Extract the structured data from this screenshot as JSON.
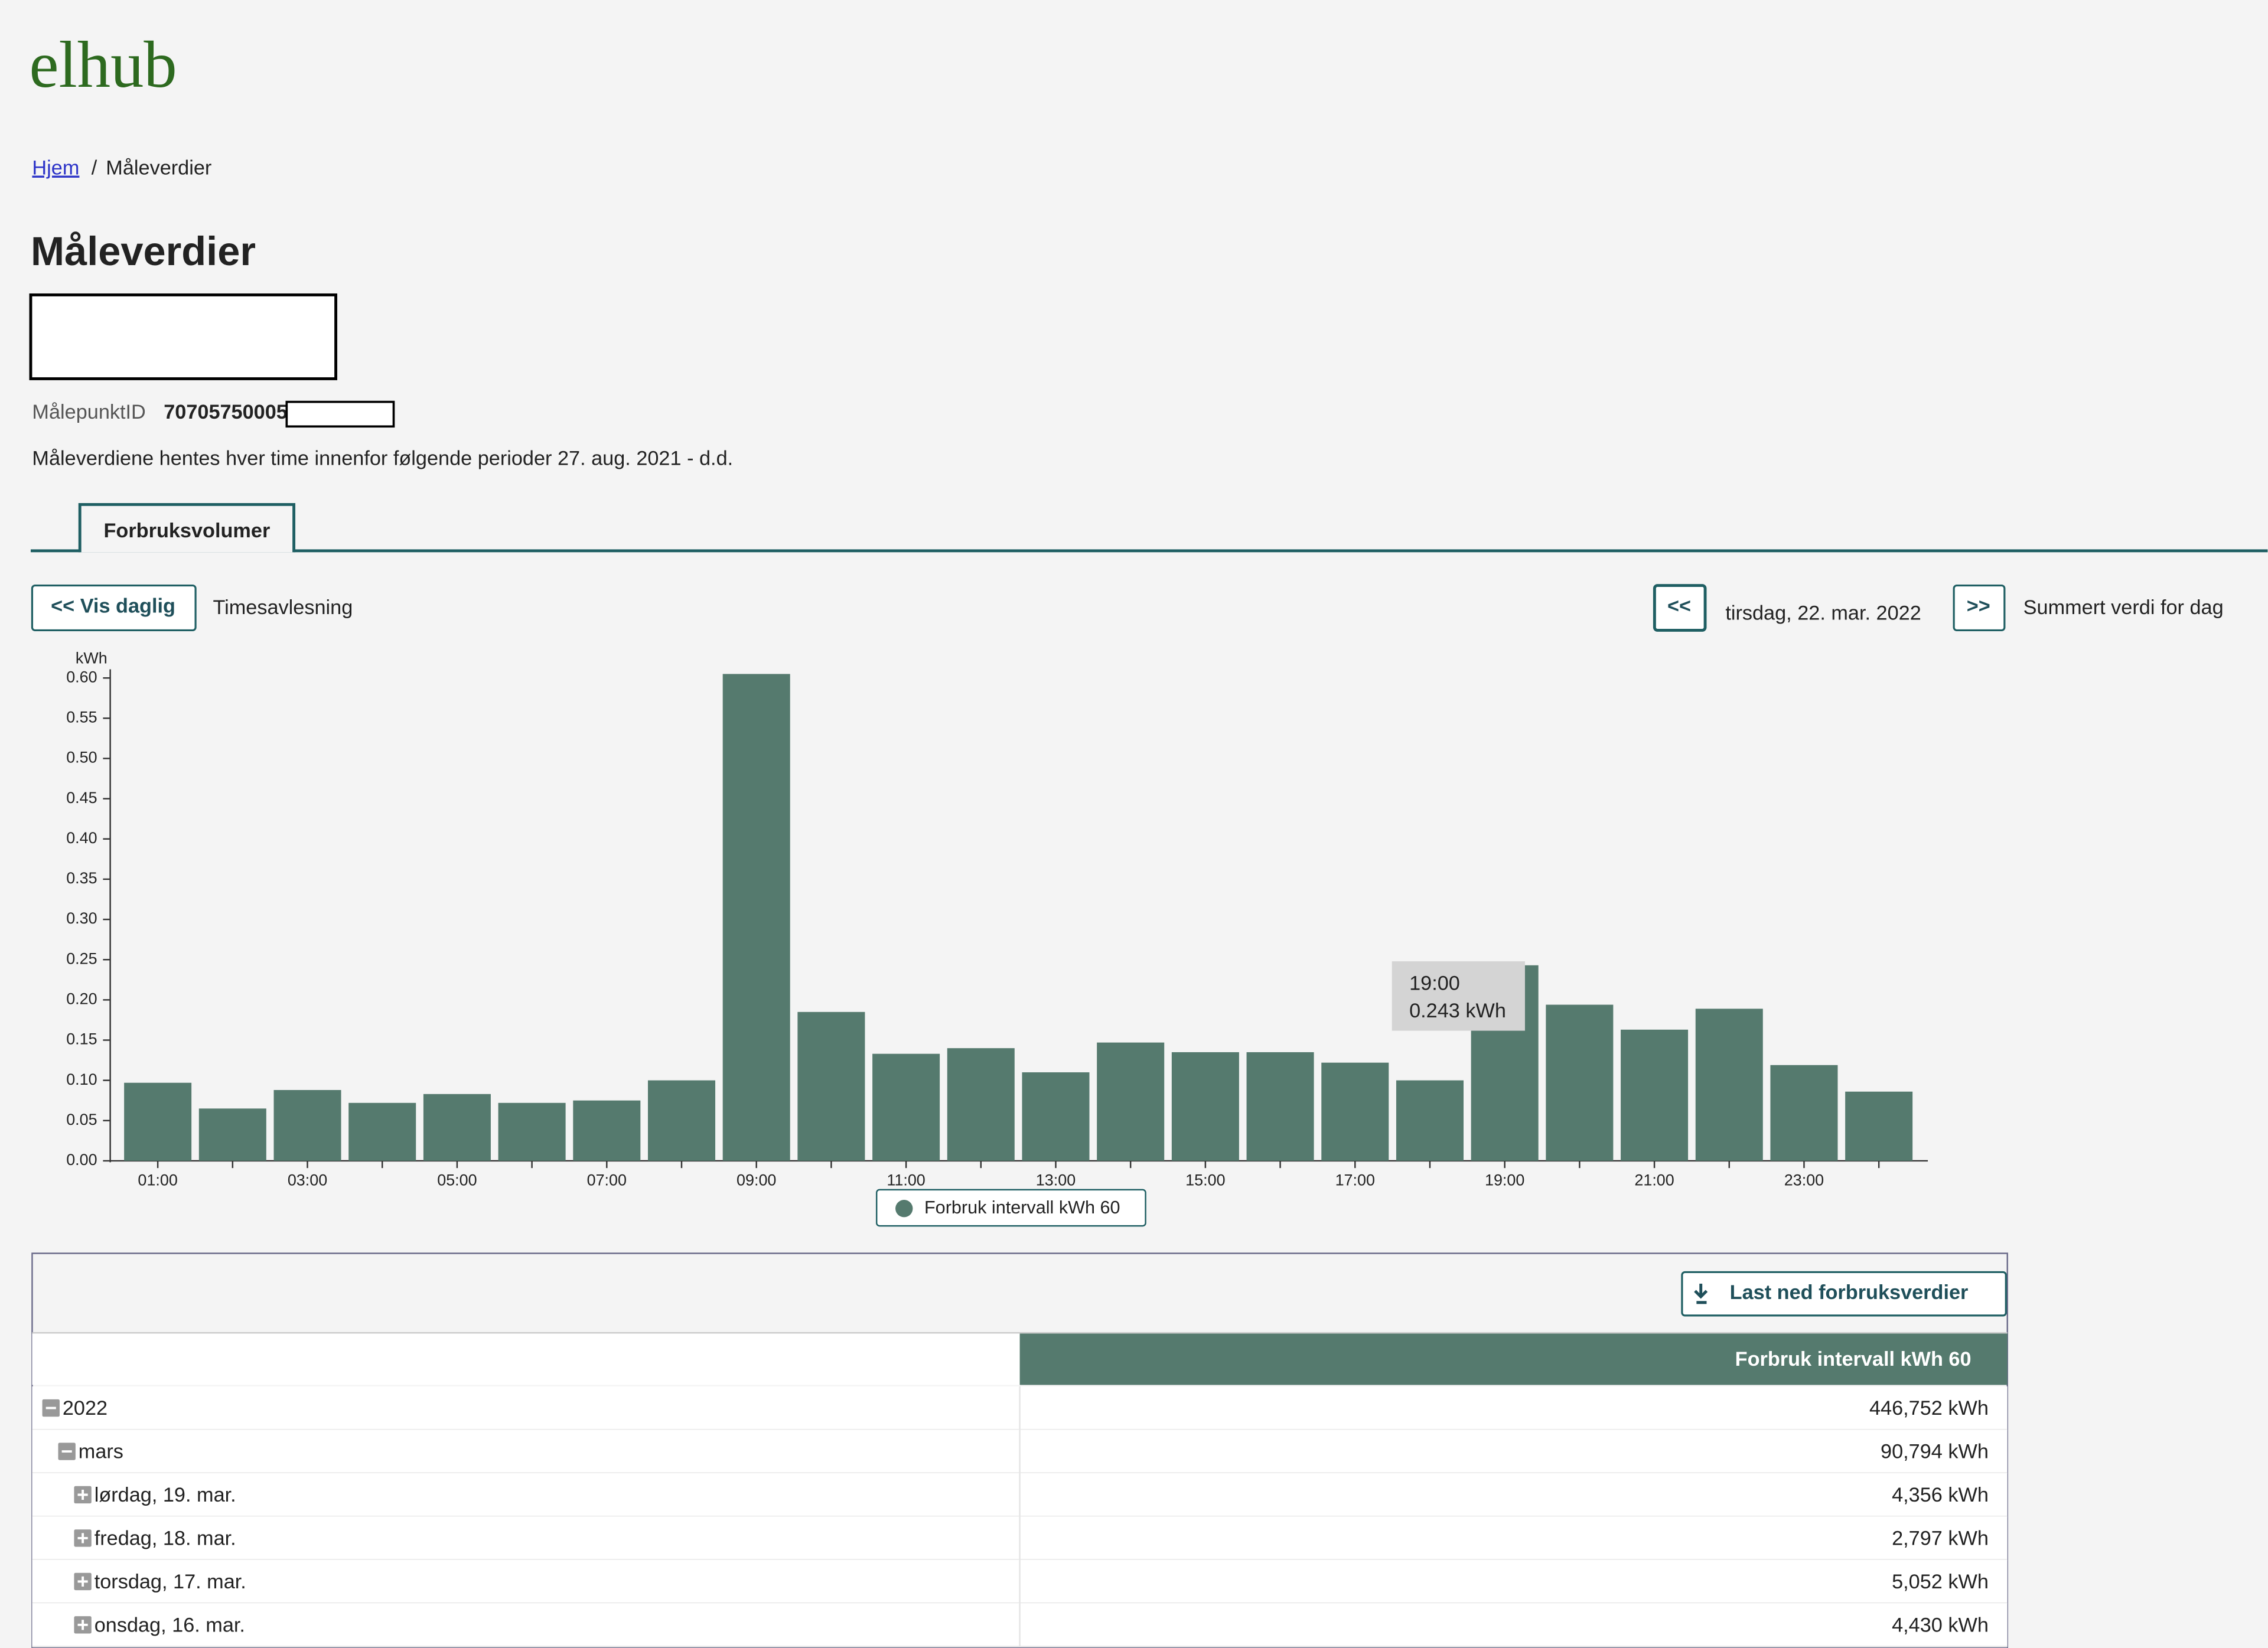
{
  "header": {
    "logo": "elhub"
  },
  "breadcrumb": {
    "home": "Hjem",
    "separator": "/",
    "current": "Måleverdier"
  },
  "page": {
    "title": "Måleverdier",
    "meter_label": "MålepunktID",
    "meter_id": "70705750005",
    "info": "Måleverdiene hentes hver time innenfor følgende perioder 27. aug. 2021 - d.d."
  },
  "tabs": [
    "Forbruksvolumer"
  ],
  "toolbar": {
    "back_button": "<< Vis daglig",
    "mode": "Timesavlesning",
    "prev_button": "<<",
    "date": "tirsdag, 22. mar. 2022",
    "next_button": ">>",
    "summary": "Summert verdi for dag"
  },
  "chart_data": {
    "type": "bar",
    "y_label": "kWh",
    "categories": [
      "01:00",
      null,
      "03:00",
      null,
      "05:00",
      null,
      "07:00",
      null,
      "09:00",
      null,
      "11:00",
      null,
      "13:00",
      null,
      "15:00",
      null,
      "17:00",
      null,
      "19:00",
      null,
      "21:00",
      null,
      "23:00",
      null
    ],
    "series": [
      {
        "name": "Forbruk intervall kWh 60",
        "color": "#557a6e",
        "values": [
          0.097,
          0.065,
          0.088,
          0.072,
          0.083,
          0.072,
          0.075,
          0.1,
          0.605,
          0.185,
          0.133,
          0.14,
          0.11,
          0.147,
          0.135,
          0.135,
          0.122,
          0.1,
          0.243,
          0.194,
          0.163,
          0.189,
          0.119,
          0.086
        ]
      }
    ],
    "ylim": [
      0,
      0.6
    ],
    "yticks": [
      {
        "value": 0,
        "label": "0.00"
      },
      {
        "value": 0.05,
        "label": "0.05"
      },
      {
        "value": 0.1,
        "label": "0.10"
      },
      {
        "value": 0.15,
        "label": "0.15"
      },
      {
        "value": 0.2,
        "label": "0.20"
      },
      {
        "value": 0.25,
        "label": "0.25"
      },
      {
        "value": 0.3,
        "label": "0.30"
      },
      {
        "value": 0.35,
        "label": "0.35"
      },
      {
        "value": 0.4,
        "label": "0.40"
      },
      {
        "value": 0.45,
        "label": "0.45"
      },
      {
        "value": 0.5,
        "label": "0.50"
      },
      {
        "value": 0.55,
        "label": "0.55"
      },
      {
        "value": 0.6,
        "label": "0.60"
      }
    ],
    "tooltip": {
      "category": "19:00",
      "text": "0.243 kWh"
    },
    "legend": "bottom"
  },
  "table": {
    "download_button": "Last ned forbruksverdier",
    "header": "Forbruk intervall kWh 60",
    "rows": [
      [
        "2022",
        "446,752 kWh"
      ],
      [
        "mars",
        "90,794 kWh"
      ],
      [
        "lørdag, 19. mar.",
        "4,356 kWh"
      ],
      [
        "fredag, 18. mar.",
        "2,797 kWh"
      ],
      [
        "torsdag, 17. mar.",
        "5,052 kWh"
      ],
      [
        "onsdag, 16. mar.",
        "4,430 kWh"
      ]
    ]
  }
}
